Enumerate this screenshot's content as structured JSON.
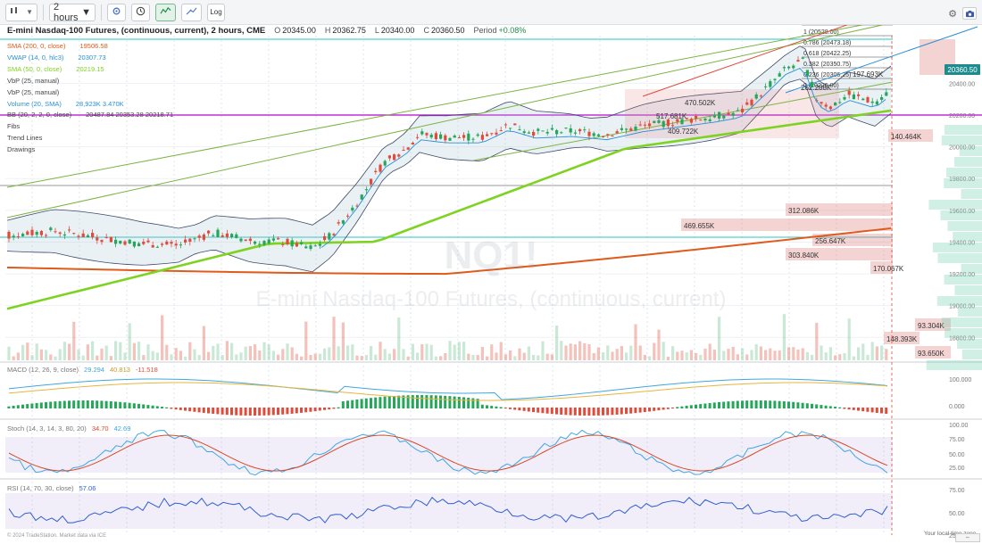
{
  "toolbar": {
    "chart_type_label": "",
    "interval_label": "2 hours",
    "log_label": "Log"
  },
  "header": {
    "title": "E-mini Nasdaq-100 Futures, (continuous, current), 2 hours, CME",
    "open_label": "O",
    "open_value": "20345.00",
    "high_label": "H",
    "high_value": "20362.75",
    "low_label": "L",
    "low_value": "20340.00",
    "close_label": "C",
    "close_value": "20360.50",
    "period_label": "Period",
    "period_value": "+0.08%"
  },
  "legend": [
    {
      "name": "SMA (200, 0, close)",
      "values": "19506.58",
      "color": "#e05a1c"
    },
    {
      "name": "VWAP (14, 0, hlc3)",
      "values": "20307.73",
      "color": "#2a8fd8"
    },
    {
      "name": "SMA (50, 0, close)",
      "values": "20219.15",
      "color": "#7ed321"
    },
    {
      "name": "VbP (25, manual)",
      "values": "",
      "color": "#444444"
    },
    {
      "name": "VbP (25, manual)",
      "values": "",
      "color": "#444444"
    },
    {
      "name": "Volume (20, SMA)",
      "values": "28,923K  3.470K",
      "color": "#2a8fd8"
    },
    {
      "name": "BB (20, 2, 2, 0, close)",
      "values": "20487.84  20353.28  20218.71",
      "color": "#444444"
    },
    {
      "name": "Fibs",
      "values": "",
      "color": "#444444"
    },
    {
      "name": "Trend Lines",
      "values": "",
      "color": "#444444"
    },
    {
      "name": "Drawings",
      "values": "",
      "color": "#444444"
    }
  ],
  "watermark": {
    "symbol": "NQ1!",
    "name": "E-mini Nasdaq-100 Futures, (continuous, current)"
  },
  "price_badge": "20360.50",
  "price_axis": [
    "20400.00",
    "20200.00",
    "20000.00",
    "19800.00",
    "19600.00",
    "19400.00",
    "19200.00",
    "19000.00",
    "18800.00"
  ],
  "fib_levels": [
    {
      "ratio": "1.382",
      "price": "(20653.75)"
    },
    {
      "ratio": "1.236",
      "price": "(20609.51)"
    },
    {
      "ratio": "1",
      "price": "(20528.00)"
    },
    {
      "ratio": "0.786",
      "price": "(20473.18)"
    },
    {
      "ratio": "0.618",
      "price": "(20422.25)"
    },
    {
      "ratio": "0.382",
      "price": "(20350.75)"
    },
    {
      "ratio": "0.236",
      "price": "(20306.25)"
    },
    {
      "ratio": "0",
      "price": "(20226.00)"
    }
  ],
  "vbp_labels": [
    "470.502K",
    "517.681K",
    "409.722K",
    "197.693K",
    "262.288K",
    "140.464K",
    "312.086K",
    "469.655K",
    "256.647K",
    "303.840K",
    "170.067K",
    "93.304K",
    "148.393K",
    "93.650K"
  ],
  "macd": {
    "legend_name": "MACD (12, 26, 9, close)",
    "v1": "29.294",
    "v2": "40.813",
    "v3": "-11.518",
    "axis": [
      "100.000",
      "0.000"
    ]
  },
  "stoch": {
    "legend_name": "Stoch (14, 3, 14, 3, 80, 20)",
    "v1": "34.70",
    "v2": "42.69",
    "axis": [
      "100.00",
      "75.00",
      "50.00",
      "25.00"
    ]
  },
  "rsi": {
    "legend_name": "RSI (14, 70, 30, close)",
    "v1": "57.06",
    "axis": [
      "75.00",
      "50.00",
      "25.00"
    ]
  },
  "footer": {
    "copyright": "© 2024 TradeStation. Market data via ICE",
    "local_time": "Your local time zone"
  },
  "colors": {
    "up": "#26a65b",
    "down": "#e04c3c",
    "sma200": "#e05a1c",
    "sma50": "#7ed321",
    "vwap": "#2a8fd8",
    "macd_line": "#3fa7e0",
    "signal_line": "#e8b53c",
    "stoch_k": "#3fa7e0",
    "stoch_d": "#d84a2a",
    "rsi_line": "#2f5fcf",
    "purple_line": "#c22ed9",
    "teal_line": "#29c4c4"
  },
  "icons": {
    "chart_type": "candle-bars-icon",
    "clock": "clock-icon",
    "settings": "gear-icon",
    "indicators": "indicator-icon",
    "drawing": "trend-icon",
    "camera": "camera-icon"
  }
}
